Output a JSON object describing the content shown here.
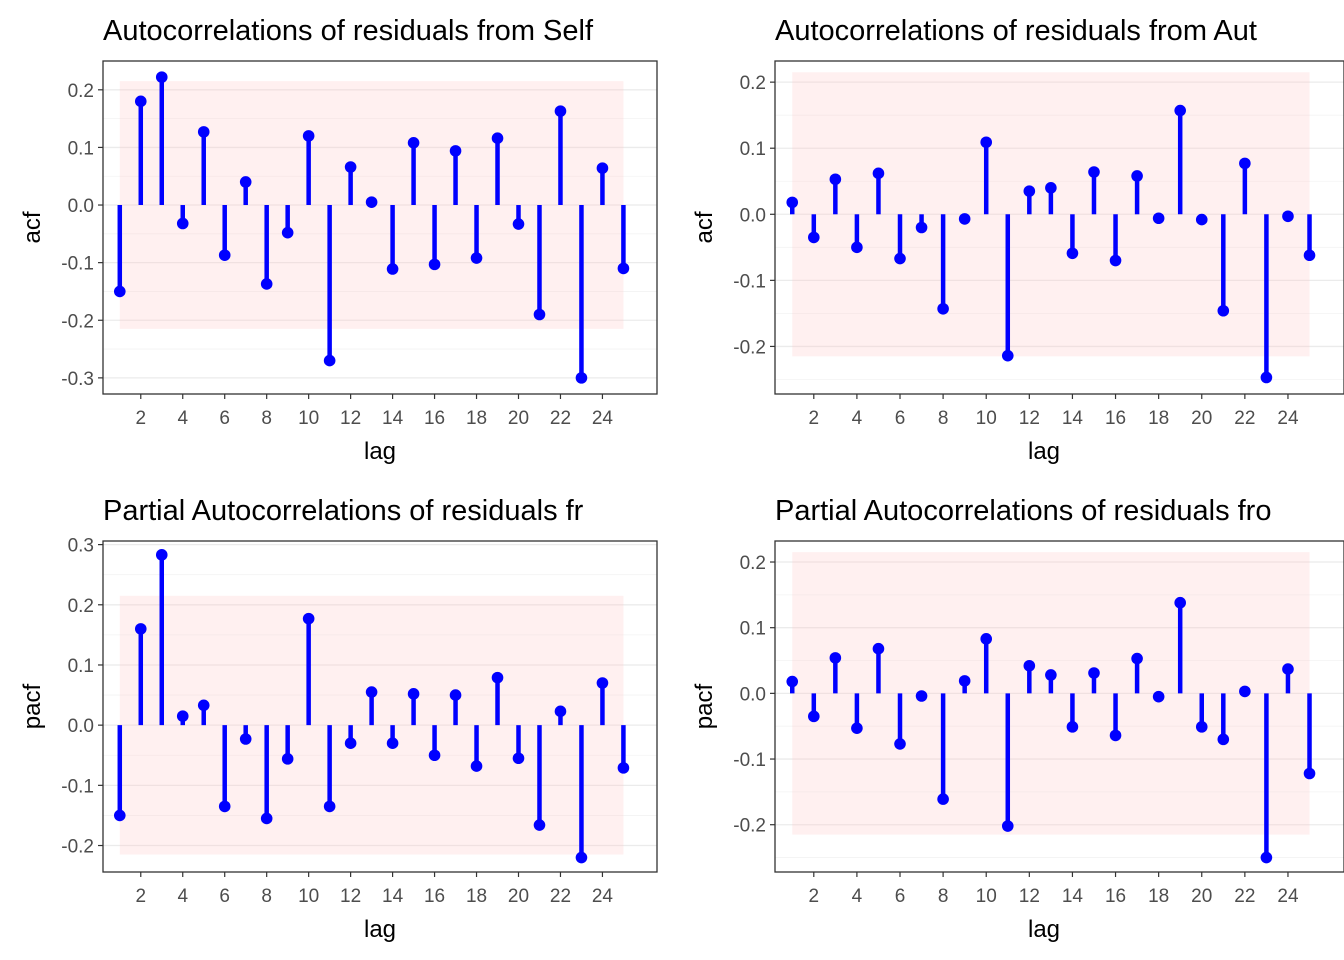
{
  "chart_data": [
    {
      "type": "lollipop",
      "title": "Autocorrelations of residuals from Self",
      "xlabel": "lag",
      "ylabel": "acf",
      "x": [
        1,
        2,
        3,
        4,
        5,
        6,
        7,
        8,
        9,
        10,
        11,
        12,
        13,
        14,
        15,
        16,
        17,
        18,
        19,
        20,
        21,
        22,
        23,
        24,
        25
      ],
      "values": [
        -0.15,
        0.18,
        0.222,
        -0.032,
        0.127,
        -0.087,
        0.04,
        -0.137,
        -0.048,
        0.12,
        -0.27,
        0.066,
        0.005,
        -0.111,
        0.108,
        -0.103,
        0.094,
        -0.092,
        0.116,
        -0.033,
        -0.19,
        0.163,
        -0.3,
        0.064,
        -0.11
      ],
      "band": [
        -0.215,
        0.215
      ],
      "xlim": [
        0.2,
        26.6
      ],
      "ylim": [
        -0.328,
        0.25
      ],
      "xticks": [
        2,
        4,
        6,
        8,
        10,
        12,
        14,
        16,
        18,
        20,
        22,
        24
      ],
      "yticks": [
        -0.3,
        -0.2,
        -0.1,
        0.0,
        0.1,
        0.2
      ],
      "ytick_labels": [
        "-0.3",
        "-0.2",
        "-0.1",
        "0.0",
        "0.1",
        "0.2"
      ],
      "grid": true
    },
    {
      "type": "lollipop",
      "title": "Autocorrelations of residuals from Aut",
      "xlabel": "lag",
      "ylabel": "acf",
      "x": [
        1,
        2,
        3,
        4,
        5,
        6,
        7,
        8,
        9,
        10,
        11,
        12,
        13,
        14,
        15,
        16,
        17,
        18,
        19,
        20,
        21,
        22,
        23,
        24,
        25
      ],
      "values": [
        0.018,
        -0.035,
        0.053,
        -0.05,
        0.062,
        -0.067,
        -0.02,
        -0.143,
        -0.007,
        0.109,
        -0.214,
        0.035,
        0.04,
        -0.059,
        0.064,
        -0.07,
        0.058,
        -0.006,
        0.157,
        -0.008,
        -0.146,
        0.077,
        -0.247,
        -0.003,
        -0.062
      ],
      "band": [
        -0.215,
        0.215
      ],
      "xlim": [
        0.2,
        26.6
      ],
      "ylim": [
        -0.272,
        0.232
      ],
      "xticks": [
        2,
        4,
        6,
        8,
        10,
        12,
        14,
        16,
        18,
        20,
        22,
        24
      ],
      "yticks": [
        -0.2,
        -0.1,
        0.0,
        0.1,
        0.2
      ],
      "ytick_labels": [
        "-0.2",
        "-0.1",
        "0.0",
        "0.1",
        "0.2"
      ],
      "grid": true
    },
    {
      "type": "lollipop",
      "title": "Partial Autocorrelations of residuals fr",
      "xlabel": "lag",
      "ylabel": "pacf",
      "x": [
        1,
        2,
        3,
        4,
        5,
        6,
        7,
        8,
        9,
        10,
        11,
        12,
        13,
        14,
        15,
        16,
        17,
        18,
        19,
        20,
        21,
        22,
        23,
        24,
        25
      ],
      "values": [
        -0.15,
        0.16,
        0.283,
        0.015,
        0.033,
        -0.135,
        -0.023,
        -0.155,
        -0.056,
        0.177,
        -0.135,
        -0.03,
        0.055,
        -0.03,
        0.052,
        -0.05,
        0.05,
        -0.068,
        0.079,
        -0.055,
        -0.166,
        0.023,
        -0.22,
        0.07,
        -0.071
      ],
      "band": [
        -0.215,
        0.215
      ],
      "xlim": [
        0.2,
        26.6
      ],
      "ylim": [
        -0.244,
        0.306
      ],
      "xticks": [
        2,
        4,
        6,
        8,
        10,
        12,
        14,
        16,
        18,
        20,
        22,
        24
      ],
      "yticks": [
        -0.2,
        -0.1,
        0.0,
        0.1,
        0.2,
        0.3
      ],
      "ytick_labels": [
        "-0.2",
        "-0.1",
        "0.0",
        "0.1",
        "0.2",
        "0.3"
      ],
      "grid": true
    },
    {
      "type": "lollipop",
      "title": "Partial Autocorrelations of residuals fro",
      "xlabel": "lag",
      "ylabel": "pacf",
      "x": [
        1,
        2,
        3,
        4,
        5,
        6,
        7,
        8,
        9,
        10,
        11,
        12,
        13,
        14,
        15,
        16,
        17,
        18,
        19,
        20,
        21,
        22,
        23,
        24,
        25
      ],
      "values": [
        0.018,
        -0.035,
        0.054,
        -0.053,
        0.068,
        -0.077,
        -0.004,
        -0.161,
        0.019,
        0.083,
        -0.202,
        0.042,
        0.028,
        -0.051,
        0.031,
        -0.064,
        0.053,
        -0.005,
        0.138,
        -0.051,
        -0.07,
        0.003,
        -0.25,
        0.037,
        -0.122
      ],
      "band": [
        -0.215,
        0.215
      ],
      "xlim": [
        0.2,
        26.6
      ],
      "ylim": [
        -0.272,
        0.232
      ],
      "xticks": [
        2,
        4,
        6,
        8,
        10,
        12,
        14,
        16,
        18,
        20,
        22,
        24
      ],
      "yticks": [
        -0.2,
        -0.1,
        0.0,
        0.1,
        0.2
      ],
      "ytick_labels": [
        "-0.2",
        "-0.1",
        "0.0",
        "0.1",
        "0.2"
      ],
      "grid": true
    }
  ]
}
